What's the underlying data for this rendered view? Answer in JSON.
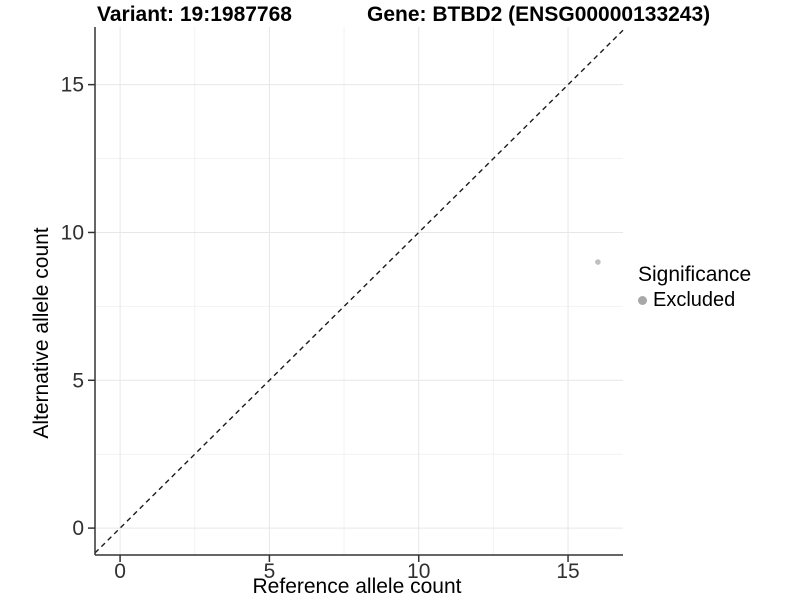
{
  "chart_data": {
    "type": "scatter",
    "title_variant": "Variant: 19:1987768",
    "title_gene": "Gene: BTBD2 (ENSG00000133243)",
    "xlabel": "Reference allele count",
    "ylabel": "Alternative allele count",
    "xlim": [
      -0.84,
      16.84
    ],
    "ylim": [
      -0.91,
      16.95
    ],
    "x_ticks": [
      0,
      5,
      10,
      15
    ],
    "y_ticks": [
      0,
      5,
      10,
      15
    ],
    "x_minor": [
      2.5,
      7.5,
      12.5
    ],
    "y_minor": [
      2.5,
      7.5,
      12.5
    ],
    "grid": "major+minor",
    "legend_position": "right",
    "points": [
      {
        "x": 16,
        "y": 9,
        "significance": "Excluded"
      }
    ],
    "reference_line": {
      "slope": 1,
      "intercept": 0,
      "style": "dashed"
    },
    "legend": {
      "title": "Significance",
      "entries": [
        {
          "label": "Excluded",
          "color": "#a8a8a8"
        }
      ]
    }
  },
  "colors": {
    "background": "#ffffff",
    "axis": "#333333",
    "tick_label": "#303030",
    "grid_major": "#e7e7e7",
    "grid_minor": "#f2f2f2",
    "point": "#c0c0c0",
    "reference_line": "#1a1a1a"
  }
}
